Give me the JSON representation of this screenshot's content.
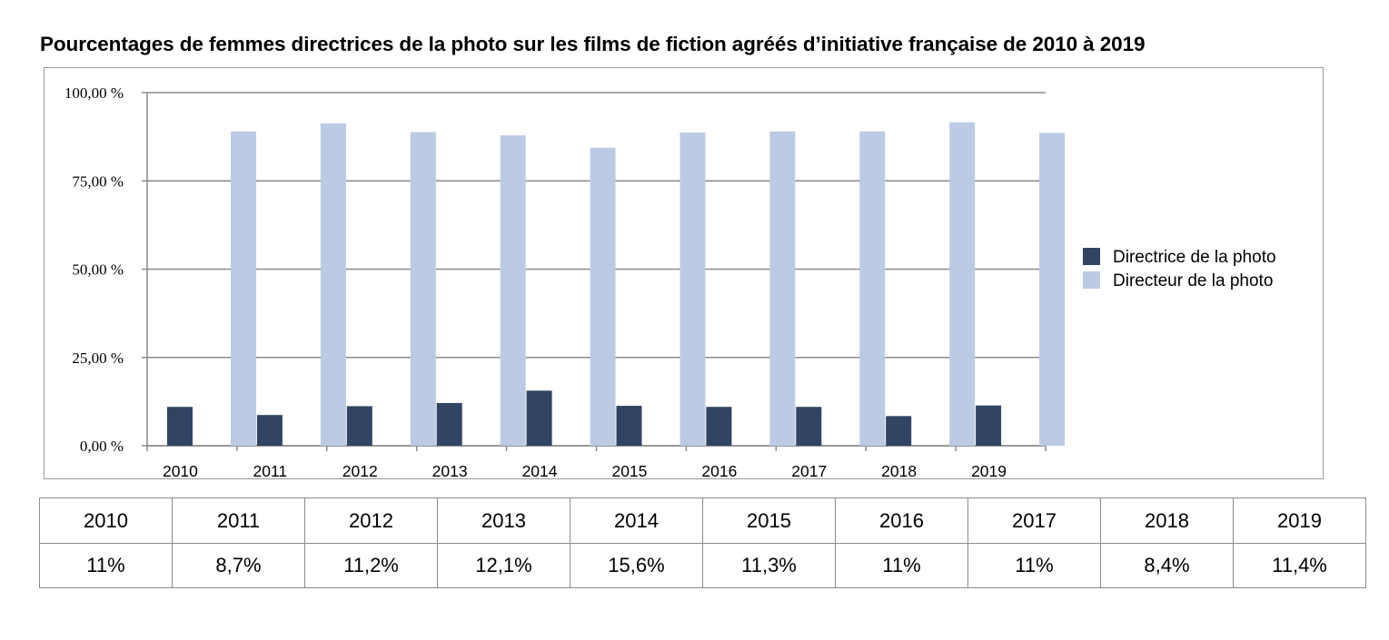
{
  "title": "Pourcentages de femmes directrices de la photo sur les films de fiction agréés d’initiative française de 2010 à 2019",
  "chart_data": {
    "type": "bar",
    "categories": [
      "2010",
      "2011",
      "2012",
      "2013",
      "2014",
      "2015",
      "2016",
      "2017",
      "2018",
      "2019"
    ],
    "series": [
      {
        "name": "Directrice de la photo",
        "color": "#324463",
        "values": [
          11,
          8.7,
          11.2,
          12.1,
          15.6,
          11.3,
          11,
          11,
          8.4,
          11.4
        ]
      },
      {
        "name": "Directeur de la photo",
        "color": "#bccbe3",
        "values": [
          89,
          91.3,
          88.8,
          87.9,
          84.4,
          88.7,
          89,
          89,
          91.6,
          88.6
        ]
      }
    ],
    "y_ticks": [
      "0,00 %",
      "25,00 %",
      "50,00 %",
      "75,00 %",
      "100,00 %"
    ],
    "ylim": [
      0,
      100
    ],
    "grid": true,
    "legend_position": "right"
  },
  "table": {
    "years": [
      "2010",
      "2011",
      "2012",
      "2013",
      "2014",
      "2015",
      "2016",
      "2017",
      "2018",
      "2019"
    ],
    "values": [
      "11%",
      "8,7%",
      "11,2%",
      "12,1%",
      "15,6%",
      "11,3%",
      "11%",
      "11%",
      "8,4%",
      "11,4%"
    ]
  }
}
